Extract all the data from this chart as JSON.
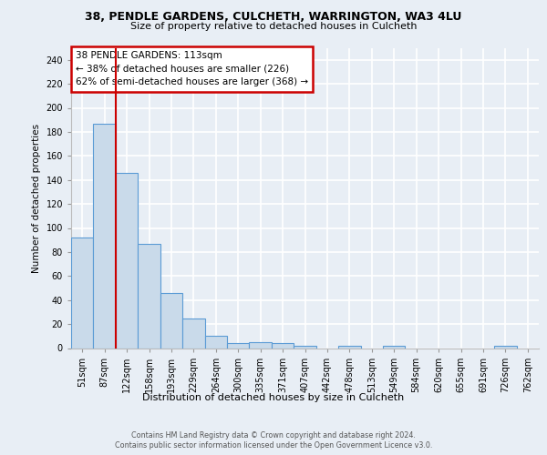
{
  "title1": "38, PENDLE GARDENS, CULCHETH, WARRINGTON, WA3 4LU",
  "title2": "Size of property relative to detached houses in Culcheth",
  "xlabel": "Distribution of detached houses by size in Culcheth",
  "ylabel": "Number of detached properties",
  "footer1": "Contains HM Land Registry data © Crown copyright and database right 2024.",
  "footer2": "Contains public sector information licensed under the Open Government Licence v3.0.",
  "annotation_line1": "38 PENDLE GARDENS: 113sqm",
  "annotation_line2": "← 38% of detached houses are smaller (226)",
  "annotation_line3": "62% of semi-detached houses are larger (368) →",
  "bar_color": "#c9daea",
  "bar_edge_color": "#5b9bd5",
  "vline_color": "#cc0000",
  "vline_x_idx": 2,
  "categories": [
    "51sqm",
    "87sqm",
    "122sqm",
    "158sqm",
    "193sqm",
    "229sqm",
    "264sqm",
    "300sqm",
    "335sqm",
    "371sqm",
    "407sqm",
    "442sqm",
    "478sqm",
    "513sqm",
    "549sqm",
    "584sqm",
    "620sqm",
    "655sqm",
    "691sqm",
    "726sqm",
    "762sqm"
  ],
  "values": [
    92,
    187,
    146,
    87,
    46,
    25,
    10,
    4,
    5,
    4,
    2,
    0,
    2,
    0,
    2,
    0,
    0,
    0,
    0,
    2,
    0
  ],
  "ylim": [
    0,
    250
  ],
  "yticks": [
    0,
    20,
    40,
    60,
    80,
    100,
    120,
    140,
    160,
    180,
    200,
    220,
    240
  ],
  "bg_color": "#e8eef5",
  "grid_color": "#ffffff",
  "annotation_box_bg": "#ffffff",
  "annotation_box_edge": "#cc0000",
  "title1_fontsize": 9.0,
  "title2_fontsize": 8.0,
  "ylabel_fontsize": 7.5,
  "xlabel_fontsize": 8.0,
  "tick_fontsize": 7.0,
  "ann_fontsize": 7.5,
  "footer_fontsize": 5.8
}
